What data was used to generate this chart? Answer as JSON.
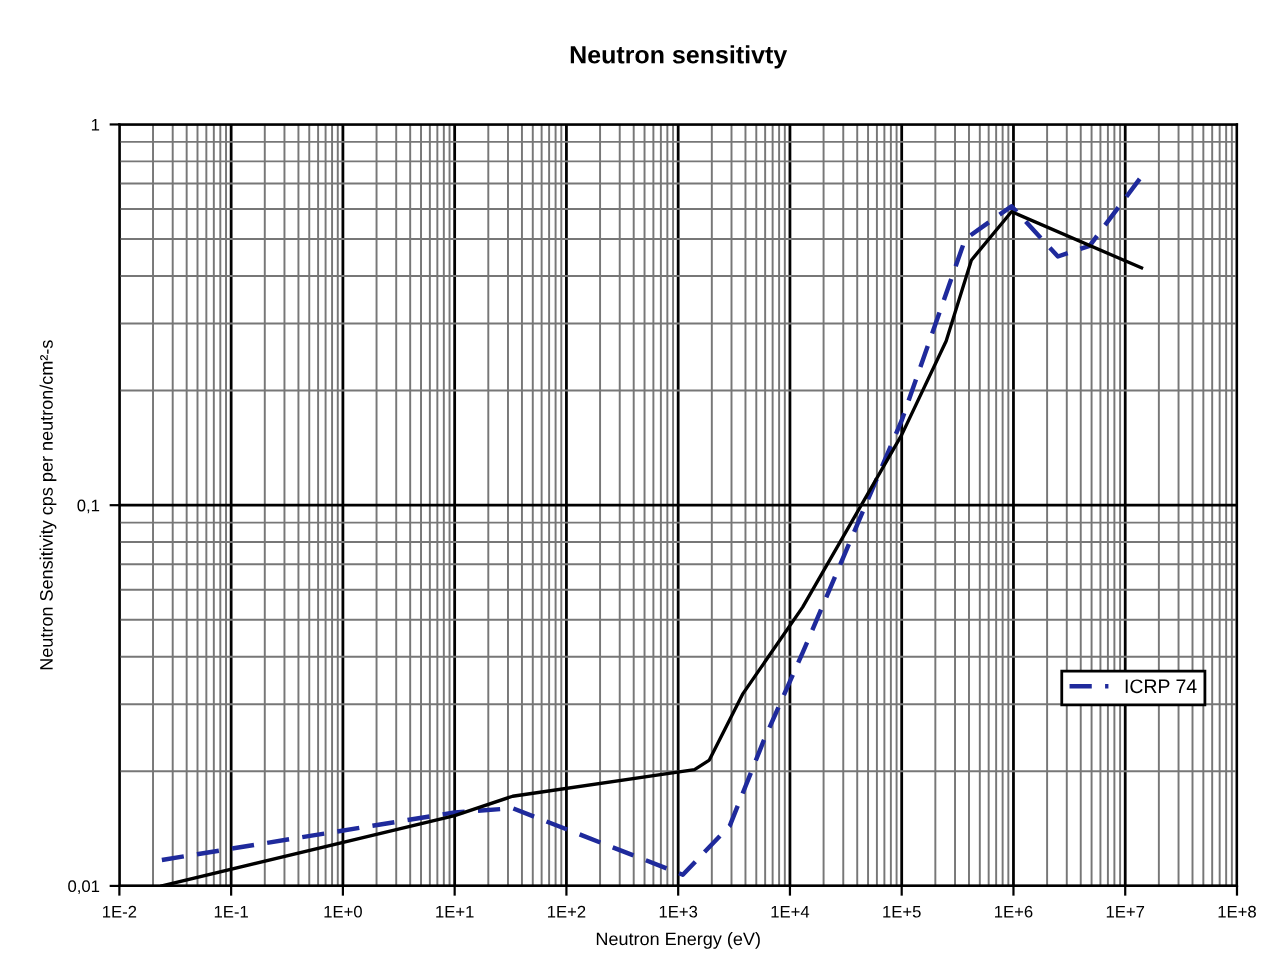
{
  "chart_data": {
    "type": "line",
    "title": "Neutron sensitivty",
    "xlabel": "Neutron Energy (eV)",
    "ylabel": "Neutron Sensitivity cps per neutron/cm²-s",
    "log": "xy",
    "grid": true,
    "legend": "right",
    "xlim": [
      0.01,
      100000000
    ],
    "ylim": [
      0.01,
      1
    ],
    "xticks": [
      {
        "value": 0.01,
        "label": "1E-2"
      },
      {
        "value": 0.1,
        "label": "1E-1"
      },
      {
        "value": 1,
        "label": "1E+0"
      },
      {
        "value": 10,
        "label": "1E+1"
      },
      {
        "value": 100,
        "label": "1E+2"
      },
      {
        "value": 1000,
        "label": "1E+3"
      },
      {
        "value": 10000,
        "label": "1E+4"
      },
      {
        "value": 100000,
        "label": "1E+5"
      },
      {
        "value": 1000000,
        "label": "1E+6"
      },
      {
        "value": 10000000,
        "label": "1E+7"
      },
      {
        "value": 100000000,
        "label": "1E+8"
      }
    ],
    "yticks": [
      {
        "value": 0.01,
        "label": "0,01"
      },
      {
        "value": 0.1,
        "label": "0,1"
      },
      1
    ],
    "series": [
      {
        "name": "ICRP 74",
        "color": "#1f2a9c",
        "line_style": "dashed",
        "x": [
          0.024,
          10,
          33,
          1100,
          2900,
          5800,
          13000,
          100000,
          370000,
          960000,
          2500000,
          4800000,
          14000000
        ],
        "values": [
          0.0117,
          0.0156,
          0.016,
          0.0107,
          0.0144,
          0.024,
          0.041,
          0.167,
          0.5,
          0.61,
          0.45,
          0.48,
          0.73
        ]
      },
      {
        "color": "#000000",
        "line_style": "solid",
        "x": [
          0.024,
          10,
          33,
          1400,
          1900,
          3800,
          13000,
          100000,
          250000,
          420000,
          960000,
          14000000
        ],
        "values": [
          0.01,
          0.0153,
          0.0172,
          0.0202,
          0.0214,
          0.032,
          0.054,
          0.153,
          0.27,
          0.44,
          0.59,
          0.42
        ]
      }
    ]
  }
}
